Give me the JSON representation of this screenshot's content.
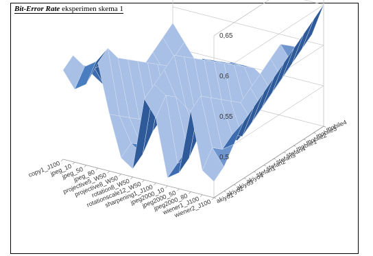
{
  "chart_data": {
    "type": "surface",
    "title_italic": "Bit-Error Rate",
    "title_rest": " eksperimen skema 1",
    "x_categories": [
      "copy1_J100",
      "jpeg_10",
      "jpeg_50",
      "jpeg_80",
      "projective5_W50",
      "projective8_W50",
      "rotation8_W50",
      "rotationscale12_W50",
      "sharpening1_J100",
      "jpeg2000_10",
      "jpeg2000_50",
      "jpeg2000_80",
      "wiener1_J100",
      "wiener2_J100"
    ],
    "y_categories": [
      "akiyo1",
      "akiyo2",
      "akiyo3",
      "akiyo4",
      "stefan1",
      "stefan2",
      "stefan3",
      "stefan4",
      "mobile1",
      "mobile2",
      "mobile3",
      "mobile4"
    ],
    "z_ticks": [
      "0,5",
      "0,55",
      "0,6",
      "0,65"
    ],
    "zlim": [
      0.45,
      0.65
    ],
    "values": [
      [
        0.56,
        0.54,
        0.55,
        0.58,
        0.52,
        0.47,
        0.46,
        0.55,
        0.53,
        0.46,
        0.47,
        0.55,
        0.48,
        0.47
      ],
      [
        0.57,
        0.56,
        0.57,
        0.59,
        0.51,
        0.48,
        0.47,
        0.56,
        0.55,
        0.47,
        0.48,
        0.56,
        0.5,
        0.48
      ],
      [
        0.55,
        0.55,
        0.56,
        0.57,
        0.5,
        0.47,
        0.49,
        0.57,
        0.54,
        0.48,
        0.5,
        0.55,
        0.49,
        0.5
      ],
      [
        0.53,
        0.52,
        0.54,
        0.56,
        0.49,
        0.48,
        0.5,
        0.58,
        0.52,
        0.49,
        0.51,
        0.54,
        0.5,
        0.52
      ],
      [
        0.52,
        0.5,
        0.52,
        0.55,
        0.48,
        0.49,
        0.51,
        0.57,
        0.5,
        0.48,
        0.5,
        0.53,
        0.49,
        0.53
      ],
      [
        0.51,
        0.49,
        0.51,
        0.54,
        0.47,
        0.5,
        0.52,
        0.56,
        0.49,
        0.47,
        0.49,
        0.52,
        0.5,
        0.54
      ],
      [
        0.5,
        0.48,
        0.5,
        0.53,
        0.46,
        0.49,
        0.53,
        0.55,
        0.48,
        0.46,
        0.48,
        0.53,
        0.51,
        0.55
      ],
      [
        0.49,
        0.47,
        0.49,
        0.52,
        0.45,
        0.48,
        0.54,
        0.54,
        0.47,
        0.45,
        0.47,
        0.54,
        0.52,
        0.56
      ],
      [
        0.5,
        0.48,
        0.48,
        0.51,
        0.46,
        0.47,
        0.53,
        0.53,
        0.46,
        0.46,
        0.48,
        0.55,
        0.53,
        0.57
      ],
      [
        0.51,
        0.49,
        0.47,
        0.5,
        0.47,
        0.48,
        0.52,
        0.52,
        0.47,
        0.47,
        0.49,
        0.56,
        0.54,
        0.58
      ],
      [
        0.52,
        0.5,
        0.48,
        0.49,
        0.48,
        0.49,
        0.51,
        0.51,
        0.48,
        0.48,
        0.5,
        0.55,
        0.55,
        0.59
      ],
      [
        0.53,
        0.51,
        0.49,
        0.48,
        0.49,
        0.5,
        0.5,
        0.5,
        0.49,
        0.49,
        0.51,
        0.54,
        0.56,
        0.6
      ]
    ],
    "colors": {
      "surface": "#4a7cc0",
      "highlight": "#a8bfe6",
      "shadow": "#2e5a99",
      "mesh": "#dbe5f3",
      "grid": "#c8c8c8"
    }
  }
}
